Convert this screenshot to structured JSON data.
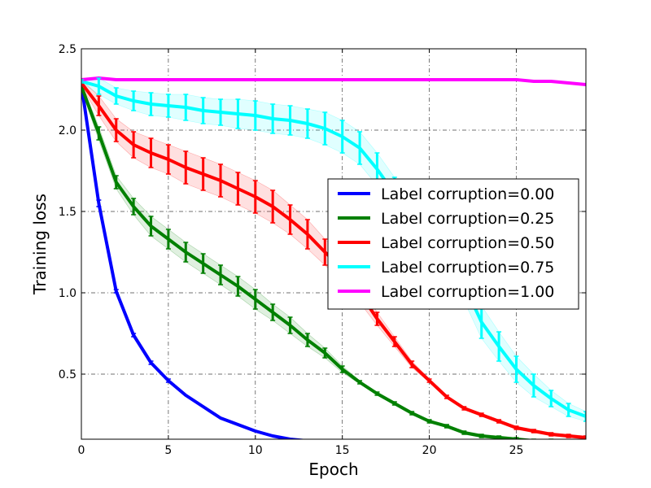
{
  "chart_data": {
    "type": "line",
    "title": "",
    "xlabel": "Epoch",
    "ylabel": "Training loss",
    "xlim": [
      0,
      29
    ],
    "ylim": [
      0.1,
      2.5
    ],
    "xticks": [
      0,
      5,
      10,
      15,
      20,
      25
    ],
    "yticks": [
      0.5,
      1.0,
      1.5,
      2.0,
      2.5
    ],
    "xtick_labels": [
      "0",
      "5",
      "10",
      "15",
      "20",
      "25"
    ],
    "ytick_labels": [
      "0.5",
      "1.0",
      "1.5",
      "2.0",
      "2.5"
    ],
    "grid": true,
    "legend_position": "center-right",
    "x": [
      0,
      1,
      2,
      3,
      4,
      5,
      6,
      7,
      8,
      9,
      10,
      11,
      12,
      13,
      14,
      15,
      16,
      17,
      18,
      19,
      20,
      21,
      22,
      23,
      24,
      25,
      26,
      27,
      28,
      29
    ],
    "series": [
      {
        "name": "Label corruption=0.00",
        "color": "#0000ff",
        "values": [
          2.28,
          1.55,
          1.01,
          0.74,
          0.57,
          0.46,
          0.37,
          0.3,
          0.23,
          0.19,
          0.15,
          0.12,
          0.1,
          0.09,
          0.08,
          0.07,
          0.06,
          0.05,
          0.05,
          0.04,
          0.04,
          0.03,
          0.03,
          0.03,
          0.03,
          0.02,
          0.02,
          0.02,
          0.02,
          0.02
        ],
        "errors": [
          0.01,
          0.02,
          0.01,
          0.01,
          0.01,
          0.01,
          0.0,
          0.0,
          0.0,
          0.0,
          0.0,
          0.0,
          0.0,
          0.0,
          0.0,
          0.0,
          0.0,
          0.0,
          0.0,
          0.0,
          0.0,
          0.0,
          0.0,
          0.0,
          0.0,
          0.0,
          0.0,
          0.0,
          0.0,
          0.0
        ]
      },
      {
        "name": "Label corruption=0.25",
        "color": "#008000",
        "values": [
          2.27,
          1.98,
          1.68,
          1.53,
          1.41,
          1.33,
          1.25,
          1.18,
          1.11,
          1.04,
          0.96,
          0.88,
          0.8,
          0.71,
          0.63,
          0.53,
          0.45,
          0.38,
          0.32,
          0.26,
          0.21,
          0.18,
          0.14,
          0.12,
          0.11,
          0.1,
          0.09,
          0.09,
          0.08,
          0.08
        ],
        "errors": [
          0.02,
          0.04,
          0.04,
          0.05,
          0.06,
          0.06,
          0.06,
          0.06,
          0.06,
          0.06,
          0.06,
          0.05,
          0.05,
          0.04,
          0.03,
          0.02,
          0.01,
          0.01,
          0.01,
          0.01,
          0.01,
          0.01,
          0.01,
          0.01,
          0.01,
          0.01,
          0.01,
          0.01,
          0.01,
          0.01
        ]
      },
      {
        "name": "Label corruption=0.50",
        "color": "#ff0000",
        "values": [
          2.29,
          2.15,
          2.0,
          1.91,
          1.86,
          1.82,
          1.77,
          1.73,
          1.69,
          1.64,
          1.59,
          1.53,
          1.45,
          1.36,
          1.25,
          1.15,
          1.0,
          0.84,
          0.7,
          0.56,
          0.46,
          0.36,
          0.29,
          0.25,
          0.21,
          0.17,
          0.15,
          0.13,
          0.12,
          0.11
        ],
        "errors": [
          0.02,
          0.06,
          0.07,
          0.08,
          0.09,
          0.09,
          0.1,
          0.1,
          0.1,
          0.1,
          0.1,
          0.1,
          0.09,
          0.09,
          0.08,
          0.08,
          0.06,
          0.04,
          0.03,
          0.02,
          0.01,
          0.01,
          0.01,
          0.01,
          0.01,
          0.01,
          0.01,
          0.01,
          0.01,
          0.01
        ]
      },
      {
        "name": "Label corruption=0.75",
        "color": "#00ffff",
        "values": [
          2.3,
          2.27,
          2.21,
          2.18,
          2.16,
          2.15,
          2.14,
          2.12,
          2.11,
          2.1,
          2.09,
          2.07,
          2.06,
          2.04,
          2.01,
          1.96,
          1.89,
          1.76,
          1.61,
          1.52,
          1.4,
          1.21,
          1.05,
          0.82,
          0.67,
          0.53,
          0.43,
          0.35,
          0.28,
          0.24
        ],
        "errors": [
          0.01,
          0.05,
          0.05,
          0.06,
          0.07,
          0.07,
          0.08,
          0.08,
          0.08,
          0.09,
          0.09,
          0.09,
          0.09,
          0.09,
          0.1,
          0.1,
          0.1,
          0.1,
          0.1,
          0.1,
          0.1,
          0.1,
          0.1,
          0.1,
          0.09,
          0.08,
          0.07,
          0.05,
          0.04,
          0.03
        ]
      },
      {
        "name": "Label corruption=1.00",
        "color": "#ff00ff",
        "values": [
          2.31,
          2.32,
          2.31,
          2.31,
          2.31,
          2.31,
          2.31,
          2.31,
          2.31,
          2.31,
          2.31,
          2.31,
          2.31,
          2.31,
          2.31,
          2.31,
          2.31,
          2.31,
          2.31,
          2.31,
          2.31,
          2.31,
          2.31,
          2.31,
          2.31,
          2.31,
          2.3,
          2.3,
          2.29,
          2.28
        ],
        "errors": [
          0,
          0,
          0,
          0,
          0,
          0,
          0,
          0,
          0,
          0,
          0,
          0,
          0,
          0,
          0,
          0,
          0,
          0,
          0,
          0,
          0,
          0,
          0,
          0,
          0,
          0,
          0,
          0,
          0,
          0
        ]
      }
    ]
  }
}
